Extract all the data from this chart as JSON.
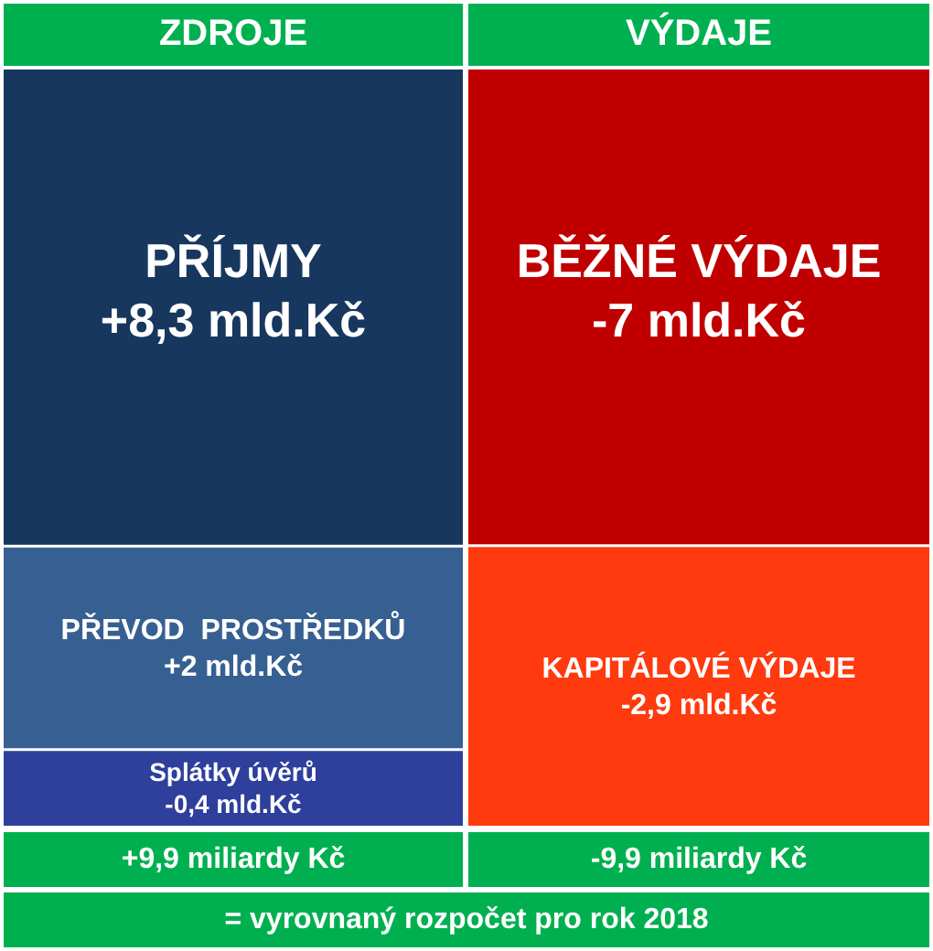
{
  "chart_data": {
    "type": "other",
    "categories": [
      "ZDROJE",
      "VÝDAJE"
    ],
    "series": [
      {
        "name": "PŘÍJMY",
        "color": "#17375e",
        "values": [
          8.3,
          null
        ],
        "value_labels": [
          "+8,3 mld.Kč",
          null
        ]
      },
      {
        "name": "PŘEVOD  PROSTŘEDKŮ",
        "color": "#376092",
        "values": [
          2,
          null
        ],
        "value_labels": [
          "+2 mld.Kč",
          null
        ]
      },
      {
        "name": "Splátky úvěrů",
        "color": "#2e3f9c",
        "values": [
          -0.4,
          null
        ],
        "value_labels": [
          "-0,4 mld.Kč",
          null
        ]
      },
      {
        "name": "BĚŽNÉ VÝDAJE",
        "color": "#c00000",
        "values": [
          null,
          -7
        ],
        "value_labels": [
          null,
          "-7 mld.Kč"
        ]
      },
      {
        "name": "KAPITÁLOVÉ VÝDAJE",
        "color": "#ff3a0e",
        "values": [
          null,
          -2.9
        ],
        "value_labels": [
          null,
          "-2,9 mld.Kč"
        ]
      }
    ],
    "totals": [
      "+9,9 miliardy Kč",
      "-9,9 miliardy Kč"
    ],
    "annotations": [
      "= vyrovnaný rozpočet pro rok 2018"
    ]
  }
}
